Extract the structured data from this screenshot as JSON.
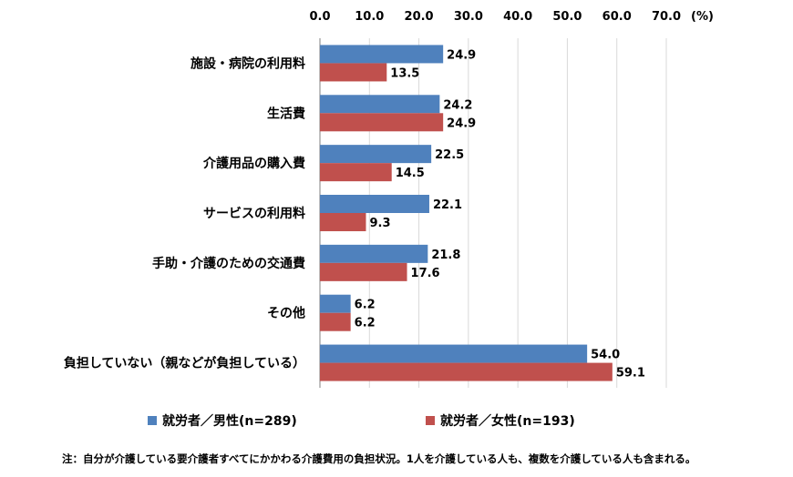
{
  "chart_data": {
    "type": "bar",
    "orientation": "horizontal",
    "unit": "(%)",
    "xlim": [
      0,
      70
    ],
    "ticks": [
      "0.0",
      "10.0",
      "20.0",
      "30.0",
      "40.0",
      "50.0",
      "60.0",
      "70.0"
    ],
    "grid": true,
    "legend_position": "bottom",
    "categories": [
      "施設・病院の利用料",
      "生活費",
      "介護用品の購入費",
      "サービスの利用料",
      "手助・介護のための交通費",
      "その他",
      "負担していない（親などが負担している）"
    ],
    "series": [
      {
        "name": "就労者／男性(n=289)",
        "color": "#4f81bd",
        "values": [
          24.9,
          24.2,
          22.5,
          22.1,
          21.8,
          6.2,
          54.0
        ],
        "labels": [
          "24.9",
          "24.2",
          "22.5",
          "22.1",
          "21.8",
          "6.2",
          "54.0"
        ]
      },
      {
        "name": "就労者／女性(n=193)",
        "color": "#c0504d",
        "values": [
          13.5,
          24.9,
          14.5,
          9.3,
          17.6,
          6.2,
          59.1
        ],
        "labels": [
          "13.5",
          "24.9",
          "14.5",
          "9.3",
          "17.6",
          "6.2",
          "59.1"
        ]
      }
    ],
    "note": "注：自分が介護している要介護者すべてにかかわる介護費用の負担状況。1人を介護している人も、複数を介護している人も含まれる。"
  }
}
